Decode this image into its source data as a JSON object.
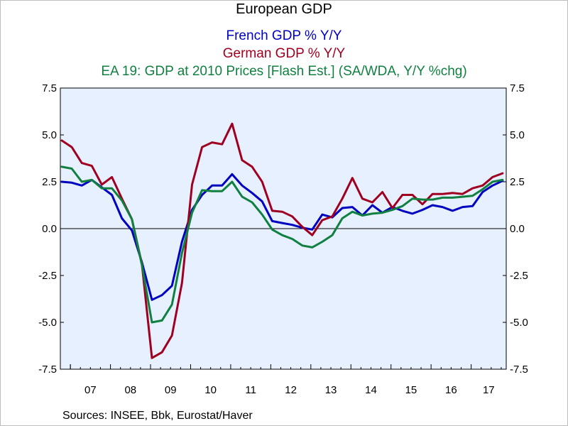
{
  "chart_data": {
    "type": "line",
    "title": "European GDP",
    "source": "Sources:  INSEE, Bbk, Eurostat/Haver",
    "year_labels": [
      "07",
      "08",
      "09",
      "10",
      "11",
      "12",
      "13",
      "14",
      "15",
      "16",
      "17"
    ],
    "y_ticks": [
      "7.5",
      "5.0",
      "2.5",
      "0.0",
      "-2.5",
      "-5.0",
      "-7.5"
    ],
    "ylim": [
      -7.5,
      7.5
    ],
    "x_range": [
      "2006Q4",
      "2017Q4"
    ],
    "zero_line": true,
    "grid": false,
    "legend": "titles above chart",
    "x": [
      "2006Q4",
      "2007Q1",
      "2007Q2",
      "2007Q3",
      "2007Q4",
      "2008Q1",
      "2008Q2",
      "2008Q3",
      "2008Q4",
      "2009Q1",
      "2009Q2",
      "2009Q3",
      "2009Q4",
      "2010Q1",
      "2010Q2",
      "2010Q3",
      "2010Q4",
      "2011Q1",
      "2011Q2",
      "2011Q3",
      "2011Q4",
      "2012Q1",
      "2012Q2",
      "2012Q3",
      "2012Q4",
      "2013Q1",
      "2013Q2",
      "2013Q3",
      "2013Q4",
      "2014Q1",
      "2014Q2",
      "2014Q3",
      "2014Q4",
      "2015Q1",
      "2015Q2",
      "2015Q3",
      "2015Q4",
      "2016Q1",
      "2016Q2",
      "2016Q3",
      "2016Q4",
      "2017Q1",
      "2017Q2",
      "2017Q3",
      "2017Q4"
    ],
    "series": [
      {
        "name": "French GDP % Y/Y",
        "color": "#0000c0",
        "values": [
          2.5,
          2.45,
          2.3,
          2.6,
          2.2,
          1.8,
          0.55,
          -0.1,
          -1.8,
          -3.8,
          -3.55,
          -3.05,
          -0.7,
          1.0,
          1.8,
          2.3,
          2.3,
          2.9,
          2.3,
          1.9,
          1.45,
          0.4,
          0.3,
          0.2,
          0.05,
          -0.05,
          0.75,
          0.6,
          1.1,
          1.15,
          0.7,
          1.25,
          0.85,
          1.15,
          0.95,
          0.8,
          1.0,
          1.25,
          1.15,
          0.95,
          1.15,
          1.2,
          1.95,
          2.3,
          2.55
        ]
      },
      {
        "name": "German GDP % Y/Y",
        "color": "#a00020",
        "values": [
          4.7,
          4.35,
          3.5,
          3.35,
          2.35,
          2.75,
          1.6,
          0.5,
          -1.9,
          -6.9,
          -6.6,
          -5.7,
          -2.9,
          2.35,
          4.35,
          4.6,
          4.5,
          5.6,
          3.65,
          3.3,
          2.5,
          0.95,
          0.9,
          0.65,
          0.1,
          -0.35,
          0.45,
          0.65,
          1.6,
          2.7,
          1.6,
          1.4,
          1.95,
          1.1,
          1.8,
          1.8,
          1.3,
          1.85,
          1.85,
          1.9,
          1.85,
          2.15,
          2.3,
          2.75,
          2.95
        ]
      },
      {
        "name": "EA 19: GDP at 2010 Prices [Flash Est.] (SA/WDA, Y/Y %chg)",
        "color": "#108040",
        "values": [
          3.3,
          3.2,
          2.5,
          2.6,
          2.15,
          2.15,
          1.5,
          0.5,
          -1.95,
          -5.0,
          -4.9,
          -4.05,
          -1.3,
          0.85,
          2.05,
          2.0,
          2.0,
          2.5,
          1.7,
          1.4,
          0.75,
          -0.05,
          -0.35,
          -0.55,
          -0.9,
          -1.0,
          -0.7,
          -0.35,
          0.55,
          0.9,
          0.7,
          0.8,
          0.85,
          1.0,
          1.2,
          1.6,
          1.55,
          1.55,
          1.65,
          1.65,
          1.7,
          1.75,
          2.1,
          2.5,
          2.6
        ]
      }
    ]
  }
}
